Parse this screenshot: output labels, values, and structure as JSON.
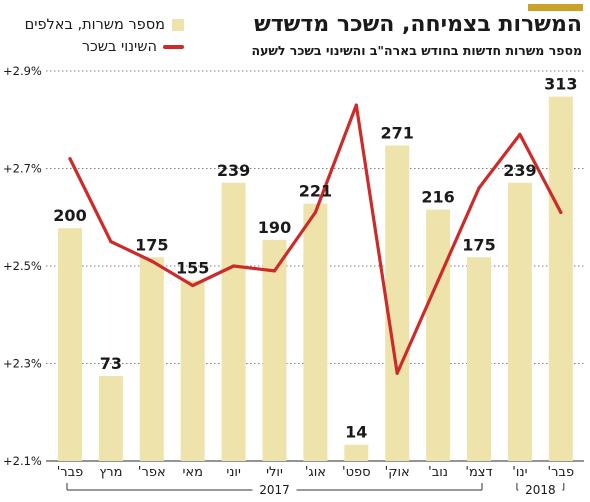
{
  "title": "המשרות בצמיחה, השכר מדשדש",
  "subtitle": "מספר משרות חדשות בחודש בארה\"ב והשינוי בשכר לשעה",
  "legend": {
    "bars_label": "מספר משרות, באלפים",
    "line_label": "השינוי בשכר"
  },
  "colors": {
    "bars": "#efe3ac",
    "line": "#cd2a2a",
    "accent": "#c9a227",
    "grid": "#555555"
  },
  "chart_data": {
    "type": "bar",
    "title": "המשרות בצמיחה, השכר מדשדש",
    "subtitle": "מספר משרות חדשות בחודש בארה\"ב והשינוי בשכר לשעה",
    "categories": [
      "פבר'",
      "מרץ",
      "אפר'",
      "מאי",
      "יוני",
      "יולי",
      "אוג'",
      "ספט'",
      "אוק'",
      "נוב'",
      "דצמ'",
      "ינו'",
      "פבר'"
    ],
    "year_groups": [
      {
        "label": "2017",
        "from": 0,
        "to": 10
      },
      {
        "label": "2018",
        "from": 11,
        "to": 12
      }
    ],
    "series": [
      {
        "name": "מספר משרות, באלפים",
        "type": "bar",
        "values": [
          200,
          73,
          175,
          155,
          239,
          190,
          221,
          14,
          271,
          216,
          175,
          239,
          313
        ],
        "labels": [
          "200",
          "73",
          "175",
          "155",
          "239",
          "190",
          "221",
          "14",
          "271",
          "216",
          "175",
          "239",
          "313"
        ]
      },
      {
        "name": "השינוי בשכר",
        "type": "line",
        "values": [
          2.72,
          2.55,
          2.51,
          2.46,
          2.5,
          2.49,
          2.61,
          2.83,
          2.28,
          2.47,
          2.66,
          2.77,
          2.61
        ]
      }
    ],
    "yticks": [
      2.1,
      2.3,
      2.5,
      2.7,
      2.9
    ],
    "ytick_labels": [
      "+2.1%",
      "+2.3%",
      "+2.5%",
      "+2.7%",
      "+2.9%"
    ],
    "ylim": [
      2.1,
      2.9
    ],
    "bar_axis_max": 335,
    "grid": true,
    "legend_position": "top-left"
  }
}
